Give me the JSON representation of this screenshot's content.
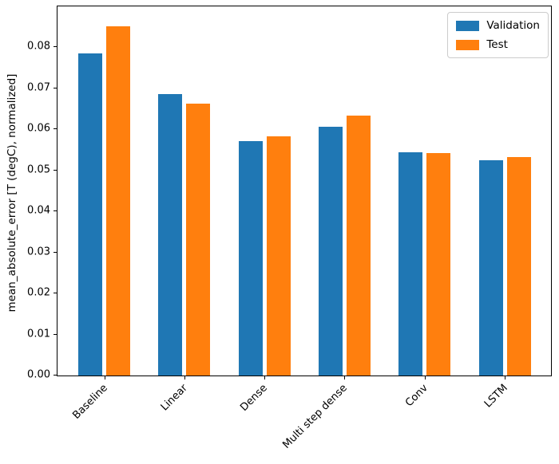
{
  "chart_data": {
    "type": "bar",
    "categories": [
      "Baseline",
      "Linear",
      "Dense",
      "Multi step dense",
      "Conv",
      "LSTM"
    ],
    "series": [
      {
        "name": "Validation",
        "color": "#1f77b4",
        "values": [
          0.0785,
          0.0686,
          0.0571,
          0.0607,
          0.0544,
          0.0524
        ]
      },
      {
        "name": "Test",
        "color": "#ff7f0e",
        "values": [
          0.0852,
          0.0663,
          0.0583,
          0.0633,
          0.0542,
          0.0533
        ]
      }
    ],
    "title": "",
    "xlabel": "",
    "ylabel": "mean_absolute_error [T (degC), normalized]",
    "ylim": [
      0,
      0.09
    ],
    "yticks": [
      0.0,
      0.01,
      0.02,
      0.03,
      0.04,
      0.05,
      0.06,
      0.07,
      0.08
    ],
    "ytick_format_decimals": 2,
    "grid": false,
    "legend_position": "upper right",
    "x_tick_label_rotation_deg": 45,
    "axis_color": "#000000",
    "background_color": "#ffffff"
  }
}
